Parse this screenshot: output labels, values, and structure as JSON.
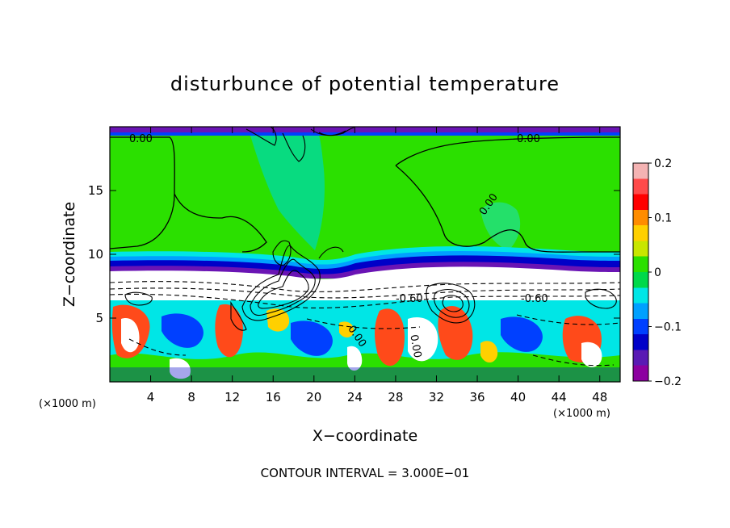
{
  "chart_data": {
    "type": "heatmap",
    "title": "disturbunce of potential temperature",
    "xlabel": "X−coordinate",
    "ylabel": "Z−coordinate",
    "x_unit": "(×1000 m)",
    "z_unit": "(×1000 m)",
    "xlim": [
      0,
      50
    ],
    "ylim": [
      0,
      20
    ],
    "x_ticks": [
      4,
      8,
      12,
      16,
      20,
      24,
      28,
      32,
      36,
      40,
      44,
      48
    ],
    "y_ticks": [
      5,
      10,
      15
    ],
    "colorbar": {
      "range": [
        -0.2,
        0.2
      ],
      "ticks": [
        "0.2",
        "0.1",
        "0",
        "−0.1",
        "−0.2"
      ],
      "colors": [
        "#f4b3b3",
        "#ff4a4a",
        "#ff0000",
        "#ff8c00",
        "#ffd000",
        "#c8e600",
        "#2be000",
        "#00d94a",
        "#00e6e6",
        "#00a0ff",
        "#0040ff",
        "#0000c8",
        "#5a1ab4",
        "#8c00a0"
      ]
    },
    "contour_labels": [
      "0.00",
      "0.00",
      "0.00",
      "-0.60",
      "-0.60",
      "0.00",
      "0.00"
    ],
    "contour_interval": "CONTOUR INTERVAL = 3.000E−01",
    "grid": false,
    "legend": "colorbar-right"
  }
}
